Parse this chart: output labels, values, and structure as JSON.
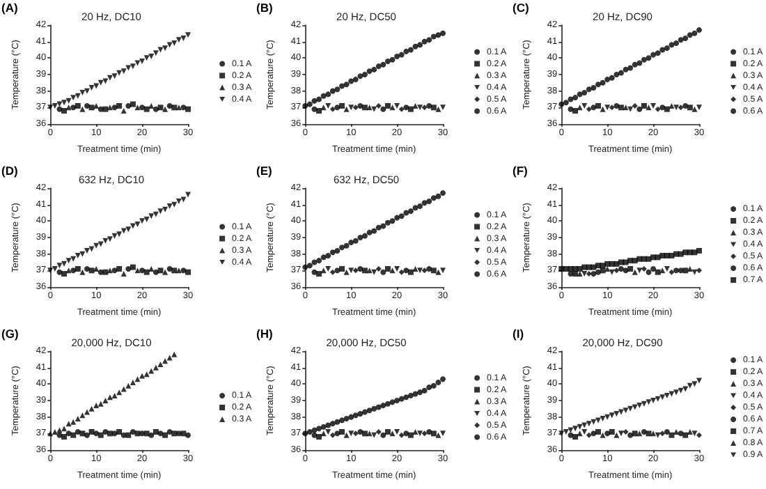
{
  "chart_data": [
    {
      "type": "scatter",
      "title": "20 Hz, DC10",
      "annotations": [
        "(A)"
      ],
      "xlabel": "Treatment time (min)",
      "ylabel": "Temperature (°C)",
      "xlim": [
        0,
        30
      ],
      "xticks": [
        0,
        10,
        20,
        30
      ],
      "ylim": [
        36,
        42
      ],
      "yticks": [
        36,
        37,
        38,
        39,
        40,
        41,
        42
      ],
      "legend": "right",
      "x": [
        0,
        1,
        2,
        3,
        4,
        5,
        6,
        7,
        8,
        9,
        10,
        11,
        12,
        13,
        14,
        15,
        16,
        17,
        18,
        19,
        20,
        21,
        22,
        23,
        24,
        25,
        26,
        27,
        28,
        29,
        30
      ],
      "series": [
        {
          "name": "0.1 A",
          "color": "#000000",
          "marker": "circle",
          "x": [
            2,
            5,
            8,
            11,
            14,
            17,
            20,
            23,
            26,
            29
          ],
          "values": [
            36.9,
            37,
            37.1,
            36.9,
            37,
            37.1,
            37,
            36.9,
            37.1,
            37
          ]
        },
        {
          "name": "0.2 A",
          "color": "#000000",
          "marker": "square",
          "x": [
            3,
            6,
            9,
            12,
            15,
            18,
            21,
            24,
            27,
            30
          ],
          "values": [
            36.8,
            37.1,
            37,
            36.9,
            37.1,
            37.2,
            36.9,
            37,
            37,
            36.9
          ]
        },
        {
          "name": "0.3 A",
          "color": "#000000",
          "marker": "triangle",
          "x": [
            4,
            7,
            10,
            13,
            16,
            19,
            22,
            25,
            28
          ],
          "values": [
            37,
            36.9,
            37.1,
            37,
            36.8,
            37,
            37.1,
            36.9,
            37
          ]
        },
        {
          "name": "0.4 A",
          "color": "#000000",
          "marker": "triangle-down",
          "values": [
            37.0,
            37.1,
            37.2,
            37.3,
            37.4,
            37.6,
            37.7,
            37.9,
            38.0,
            38.2,
            38.3,
            38.5,
            38.6,
            38.8,
            38.9,
            39.1,
            39.2,
            39.4,
            39.5,
            39.7,
            39.8,
            40.0,
            40.1,
            40.3,
            40.5,
            40.6,
            40.8,
            40.9,
            41.1,
            41.2,
            41.4
          ]
        }
      ]
    },
    {
      "type": "scatter",
      "title": "20 Hz, DC50",
      "annotations": [
        "(B)"
      ],
      "xlabel": "Treatment time (min)",
      "ylabel": "Temperature (°C)",
      "xlim": [
        0,
        30
      ],
      "xticks": [
        0,
        10,
        20,
        30
      ],
      "ylim": [
        36,
        42
      ],
      "yticks": [
        36,
        37,
        38,
        39,
        40,
        41,
        42
      ],
      "legend": "right",
      "x": [
        0,
        1,
        2,
        3,
        4,
        5,
        6,
        7,
        8,
        9,
        10,
        11,
        12,
        13,
        14,
        15,
        16,
        17,
        18,
        19,
        20,
        21,
        22,
        23,
        24,
        25,
        26,
        27,
        28,
        29,
        30
      ],
      "series": [
        {
          "name": "0.1 A",
          "color": "#000000",
          "marker": "circle",
          "x": [
            2,
            7,
            12,
            17,
            22,
            27
          ],
          "values": [
            36.9,
            37,
            37.1,
            36.9,
            37,
            37.1
          ]
        },
        {
          "name": "0.2 A",
          "color": "#000000",
          "marker": "square",
          "x": [
            3,
            8,
            13,
            18,
            23,
            28
          ],
          "values": [
            36.8,
            37.1,
            37,
            37.1,
            36.9,
            37
          ]
        },
        {
          "name": "0.3 A",
          "color": "#000000",
          "marker": "triangle",
          "x": [
            4,
            9,
            14,
            19,
            24,
            29
          ],
          "values": [
            37,
            36.9,
            37,
            37,
            37.1,
            36.9
          ]
        },
        {
          "name": "0.4 A",
          "color": "#000000",
          "marker": "triangle-down",
          "x": [
            5,
            10,
            15,
            20,
            25,
            30
          ],
          "values": [
            37.1,
            37,
            36.9,
            37.1,
            37,
            37
          ]
        },
        {
          "name": "0.5 A",
          "color": "#000000",
          "marker": "diamond",
          "x": [
            6,
            11,
            16,
            21,
            26
          ],
          "values": [
            36.9,
            37,
            37.1,
            36.9,
            37
          ]
        },
        {
          "name": "0.6 A",
          "color": "#000000",
          "marker": "circle",
          "values": [
            37.1,
            37.2,
            37.4,
            37.5,
            37.7,
            37.8,
            38.0,
            38.1,
            38.3,
            38.4,
            38.6,
            38.7,
            38.9,
            39.0,
            39.2,
            39.3,
            39.5,
            39.6,
            39.8,
            39.9,
            40.1,
            40.2,
            40.4,
            40.5,
            40.7,
            40.8,
            41.0,
            41.1,
            41.3,
            41.4,
            41.5
          ]
        }
      ]
    },
    {
      "type": "scatter",
      "title": "20 Hz, DC90",
      "annotations": [
        "(C)"
      ],
      "xlabel": "Treatment time (min)",
      "ylabel": "Temperature (°C)",
      "xlim": [
        0,
        30
      ],
      "xticks": [
        0,
        10,
        20,
        30
      ],
      "ylim": [
        36,
        42
      ],
      "yticks": [
        36,
        37,
        38,
        39,
        40,
        41,
        42
      ],
      "legend": "right",
      "x": [
        0,
        1,
        2,
        3,
        4,
        5,
        6,
        7,
        8,
        9,
        10,
        11,
        12,
        13,
        14,
        15,
        16,
        17,
        18,
        19,
        20,
        21,
        22,
        23,
        24,
        25,
        26,
        27,
        28,
        29,
        30
      ],
      "series": [
        {
          "name": "0.1 A",
          "color": "#000000",
          "marker": "circle",
          "x": [
            2,
            7,
            12,
            17,
            22,
            27
          ],
          "values": [
            36.9,
            37,
            37.1,
            36.9,
            37,
            37.1
          ]
        },
        {
          "name": "0.2 A",
          "color": "#000000",
          "marker": "square",
          "x": [
            3,
            8,
            13,
            18,
            23,
            28
          ],
          "values": [
            36.8,
            37.1,
            37,
            37.1,
            36.9,
            37
          ]
        },
        {
          "name": "0.3 A",
          "color": "#000000",
          "marker": "triangle",
          "x": [
            4,
            9,
            14,
            19,
            24,
            29
          ],
          "values": [
            37,
            36.9,
            37,
            37,
            37.1,
            36.9
          ]
        },
        {
          "name": "0.4 A",
          "color": "#000000",
          "marker": "triangle-down",
          "x": [
            5,
            10,
            15,
            20,
            25,
            30
          ],
          "values": [
            37.1,
            37,
            36.9,
            37.1,
            37,
            37
          ]
        },
        {
          "name": "0.5 A",
          "color": "#000000",
          "marker": "diamond",
          "x": [
            6,
            11,
            16,
            21,
            26
          ],
          "values": [
            36.9,
            37,
            37.1,
            36.9,
            37
          ]
        },
        {
          "name": "0.6 A",
          "color": "#000000",
          "marker": "circle",
          "values": [
            37.2,
            37.3,
            37.5,
            37.6,
            37.8,
            37.9,
            38.1,
            38.2,
            38.4,
            38.5,
            38.7,
            38.8,
            39.0,
            39.1,
            39.3,
            39.4,
            39.6,
            39.7,
            39.9,
            40.0,
            40.2,
            40.3,
            40.5,
            40.6,
            40.8,
            40.9,
            41.1,
            41.2,
            41.4,
            41.5,
            41.7
          ]
        }
      ]
    },
    {
      "type": "scatter",
      "title": "632 Hz, DC10",
      "annotations": [
        "(D)"
      ],
      "xlabel": "Treatment time (min)",
      "ylabel": "Temperature (°C)",
      "xlim": [
        0,
        30
      ],
      "xticks": [
        0,
        10,
        20,
        30
      ],
      "ylim": [
        36,
        42
      ],
      "yticks": [
        36,
        37,
        38,
        39,
        40,
        41,
        42
      ],
      "legend": "right",
      "x": [
        0,
        1,
        2,
        3,
        4,
        5,
        6,
        7,
        8,
        9,
        10,
        11,
        12,
        13,
        14,
        15,
        16,
        17,
        18,
        19,
        20,
        21,
        22,
        23,
        24,
        25,
        26,
        27,
        28,
        29,
        30
      ],
      "series": [
        {
          "name": "0.1 A",
          "color": "#000000",
          "marker": "circle",
          "x": [
            2,
            5,
            8,
            11,
            14,
            17,
            20,
            23,
            26,
            29
          ],
          "values": [
            36.9,
            37,
            37.1,
            36.9,
            37,
            37.1,
            37,
            36.9,
            37.1,
            37
          ]
        },
        {
          "name": "0.2 A",
          "color": "#000000",
          "marker": "square",
          "x": [
            3,
            6,
            9,
            12,
            15,
            18,
            21,
            24,
            27,
            30
          ],
          "values": [
            36.8,
            37.1,
            37,
            36.9,
            37.1,
            37.2,
            36.9,
            37,
            37,
            36.9
          ]
        },
        {
          "name": "0.3 A",
          "color": "#000000",
          "marker": "triangle",
          "x": [
            4,
            7,
            10,
            13,
            16,
            19,
            22,
            25,
            28
          ],
          "values": [
            37,
            36.9,
            37.1,
            37,
            36.8,
            37,
            37.1,
            36.9,
            37
          ]
        },
        {
          "name": "0.4 A",
          "color": "#000000",
          "marker": "triangle-down",
          "values": [
            37.0,
            37.1,
            37.3,
            37.4,
            37.6,
            37.7,
            37.9,
            38.0,
            38.2,
            38.3,
            38.5,
            38.6,
            38.8,
            38.9,
            39.1,
            39.2,
            39.4,
            39.5,
            39.7,
            39.8,
            40.0,
            40.1,
            40.3,
            40.4,
            40.6,
            40.7,
            40.9,
            41.0,
            41.2,
            41.3,
            41.6
          ]
        }
      ]
    },
    {
      "type": "scatter",
      "title": "632 Hz, DC50",
      "annotations": [
        "(E)"
      ],
      "xlabel": "Treatment time (min)",
      "ylabel": "Temperature (°C)",
      "xlim": [
        0,
        30
      ],
      "xticks": [
        0,
        10,
        20,
        30
      ],
      "ylim": [
        36,
        42
      ],
      "yticks": [
        36,
        37,
        38,
        39,
        40,
        41,
        42
      ],
      "legend": "right",
      "x": [
        0,
        1,
        2,
        3,
        4,
        5,
        6,
        7,
        8,
        9,
        10,
        11,
        12,
        13,
        14,
        15,
        16,
        17,
        18,
        19,
        20,
        21,
        22,
        23,
        24,
        25,
        26,
        27,
        28,
        29,
        30
      ],
      "series": [
        {
          "name": "0.1 A",
          "color": "#000000",
          "marker": "circle",
          "x": [
            2,
            7,
            12,
            17,
            22,
            27
          ],
          "values": [
            36.9,
            37,
            37.1,
            36.9,
            37,
            37.1
          ]
        },
        {
          "name": "0.2 A",
          "color": "#000000",
          "marker": "square",
          "x": [
            3,
            8,
            13,
            18,
            23,
            28
          ],
          "values": [
            36.8,
            37.1,
            37,
            37.1,
            36.9,
            37
          ]
        },
        {
          "name": "0.3 A",
          "color": "#000000",
          "marker": "triangle",
          "x": [
            4,
            9,
            14,
            19,
            24,
            29
          ],
          "values": [
            37,
            36.9,
            37,
            37,
            37.1,
            36.9
          ]
        },
        {
          "name": "0.4 A",
          "color": "#000000",
          "marker": "triangle-down",
          "x": [
            5,
            10,
            15,
            20,
            25,
            30
          ],
          "values": [
            37.1,
            37,
            36.9,
            37.1,
            37,
            37
          ]
        },
        {
          "name": "0.5 A",
          "color": "#000000",
          "marker": "diamond",
          "x": [
            6,
            11,
            16,
            21,
            26
          ],
          "values": [
            36.9,
            37,
            37.1,
            36.9,
            37
          ]
        },
        {
          "name": "0.6 A",
          "color": "#000000",
          "marker": "circle",
          "values": [
            37.2,
            37.3,
            37.5,
            37.6,
            37.8,
            37.9,
            38.1,
            38.2,
            38.4,
            38.5,
            38.7,
            38.8,
            39.0,
            39.1,
            39.3,
            39.4,
            39.6,
            39.7,
            39.9,
            40.0,
            40.2,
            40.3,
            40.5,
            40.6,
            40.8,
            40.9,
            41.1,
            41.2,
            41.4,
            41.5,
            41.7
          ]
        }
      ]
    },
    {
      "type": "scatter",
      "annotations": [
        "(F)"
      ],
      "xlabel": "Treatment time (min)",
      "ylabel": "Temperature (°C)",
      "xlim": [
        0,
        30
      ],
      "xticks": [
        0,
        10,
        20,
        30
      ],
      "ylim": [
        36,
        42
      ],
      "yticks": [
        36,
        37,
        38,
        39,
        40,
        41,
        42
      ],
      "legend": "right",
      "x": [
        0,
        1,
        2,
        3,
        4,
        5,
        6,
        7,
        8,
        9,
        10,
        11,
        12,
        13,
        14,
        15,
        16,
        17,
        18,
        19,
        20,
        21,
        22,
        23,
        24,
        25,
        26,
        27,
        28,
        29,
        30
      ],
      "series": [
        {
          "name": "0.1 A",
          "color": "#000000",
          "marker": "circle",
          "x": [
            2,
            8,
            14,
            20,
            26
          ],
          "values": [
            36.8,
            36.9,
            37,
            37.1,
            37
          ]
        },
        {
          "name": "0.2 A",
          "color": "#000000",
          "marker": "square",
          "x": [
            3,
            9,
            15,
            21,
            27
          ],
          "values": [
            36.8,
            37,
            37.1,
            36.9,
            37
          ]
        },
        {
          "name": "0.3 A",
          "color": "#000000",
          "marker": "triangle",
          "x": [
            4,
            10,
            16,
            22,
            28
          ],
          "values": [
            36.8,
            37.1,
            36.9,
            37,
            37.1
          ]
        },
        {
          "name": "0.4 A",
          "color": "#000000",
          "marker": "triangle-down",
          "x": [
            5,
            11,
            17,
            23,
            29
          ],
          "values": [
            36.8,
            36.9,
            37,
            37.1,
            36.9
          ]
        },
        {
          "name": "0.5 A",
          "color": "#000000",
          "marker": "diamond",
          "x": [
            6,
            12,
            18,
            24,
            30
          ],
          "values": [
            36.8,
            37,
            37.1,
            36.9,
            37
          ]
        },
        {
          "name": "0.6 A",
          "color": "#000000",
          "marker": "circle",
          "x": [
            7,
            13,
            19,
            25
          ],
          "values": [
            36.8,
            37.1,
            36.9,
            37
          ]
        },
        {
          "name": "0.7 A",
          "color": "#000000",
          "marker": "square",
          "values": [
            37.1,
            37.1,
            37.1,
            37.1,
            37.1,
            37.2,
            37.2,
            37.2,
            37.3,
            37.3,
            37.4,
            37.4,
            37.4,
            37.5,
            37.5,
            37.6,
            37.6,
            37.7,
            37.7,
            37.7,
            37.8,
            37.8,
            37.9,
            37.9,
            37.9,
            38.0,
            38.0,
            38.1,
            38.1,
            38.1,
            38.2
          ]
        }
      ]
    },
    {
      "type": "scatter",
      "title": "20,000 Hz, DC10",
      "annotations": [
        "(G)"
      ],
      "xlabel": "Treatment time (min)",
      "ylabel": "Temperature (°C)",
      "xlim": [
        0,
        30
      ],
      "xticks": [
        0,
        10,
        20,
        30
      ],
      "ylim": [
        36,
        42
      ],
      "yticks": [
        36,
        37,
        38,
        39,
        40,
        41,
        42
      ],
      "legend": "right",
      "series": [
        {
          "name": "0.1 A",
          "color": "#000000",
          "marker": "circle",
          "x": [
            2,
            4,
            6,
            8,
            10,
            12,
            14,
            16,
            18,
            20,
            22,
            24,
            26,
            28,
            30
          ],
          "values": [
            36.9,
            37,
            37.1,
            36.9,
            37,
            37.1,
            37,
            36.9,
            37.1,
            37,
            36.9,
            37,
            37.1,
            37,
            36.9
          ]
        },
        {
          "name": "0.2 A",
          "color": "#000000",
          "marker": "square",
          "x": [
            3,
            5,
            7,
            9,
            11,
            13,
            15,
            17,
            19,
            21,
            23,
            25,
            27,
            29
          ],
          "values": [
            36.8,
            36.9,
            37,
            37.1,
            36.9,
            37,
            37.1,
            36.9,
            37,
            37,
            37.1,
            36.9,
            37,
            37
          ]
        },
        {
          "name": "0.3 A",
          "color": "#000000",
          "marker": "triangle",
          "x": [
            0,
            1,
            2,
            3,
            4,
            5,
            6,
            7,
            8,
            9,
            10,
            11,
            12,
            13,
            14,
            15,
            16,
            17,
            18,
            19,
            20,
            21,
            22,
            23,
            24,
            25,
            26,
            27
          ],
          "values": [
            37.0,
            37.1,
            37.2,
            37.3,
            37.6,
            37.7,
            37.9,
            38.1,
            38.3,
            38.5,
            38.7,
            38.8,
            39.0,
            39.2,
            39.3,
            39.5,
            39.7,
            39.9,
            40.1,
            40.3,
            40.5,
            40.6,
            40.8,
            41.0,
            41.2,
            41.4,
            41.6,
            41.8
          ]
        }
      ]
    },
    {
      "type": "scatter",
      "title": "20,000 Hz, DC50",
      "annotations": [
        "(H)"
      ],
      "xlabel": "Treatment time (min)",
      "ylabel": "Temperature (°C)",
      "xlim": [
        0,
        30
      ],
      "xticks": [
        0,
        10,
        20,
        30
      ],
      "ylim": [
        36,
        42
      ],
      "yticks": [
        36,
        37,
        38,
        39,
        40,
        41,
        42
      ],
      "legend": "right",
      "x": [
        0,
        1,
        2,
        3,
        4,
        5,
        6,
        7,
        8,
        9,
        10,
        11,
        12,
        13,
        14,
        15,
        16,
        17,
        18,
        19,
        20,
        21,
        22,
        23,
        24,
        25,
        26,
        27,
        28,
        29,
        30
      ],
      "series": [
        {
          "name": "0.1 A",
          "color": "#000000",
          "marker": "circle",
          "x": [
            2,
            7,
            12,
            17,
            22,
            27
          ],
          "values": [
            36.9,
            37,
            37.1,
            36.9,
            37,
            37.1
          ]
        },
        {
          "name": "0.2 A",
          "color": "#000000",
          "marker": "square",
          "x": [
            3,
            8,
            13,
            18,
            23,
            28
          ],
          "values": [
            36.8,
            37.1,
            37,
            37.1,
            36.9,
            37
          ]
        },
        {
          "name": "0.3 A",
          "color": "#000000",
          "marker": "triangle",
          "x": [
            4,
            9,
            14,
            19,
            24,
            29
          ],
          "values": [
            37,
            36.9,
            37,
            37,
            37.1,
            36.9
          ]
        },
        {
          "name": "0.4 A",
          "color": "#000000",
          "marker": "triangle-down",
          "x": [
            5,
            10,
            15,
            20,
            25,
            30
          ],
          "values": [
            37.1,
            37,
            36.9,
            37.1,
            37,
            37
          ]
        },
        {
          "name": "0.5 A",
          "color": "#000000",
          "marker": "diamond",
          "x": [
            6,
            11,
            16,
            21,
            26
          ],
          "values": [
            36.9,
            37,
            37.1,
            36.9,
            37
          ]
        },
        {
          "name": "0.6 A",
          "color": "#000000",
          "marker": "circle",
          "values": [
            37.0,
            37.1,
            37.2,
            37.3,
            37.4,
            37.5,
            37.6,
            37.7,
            37.8,
            37.9,
            38.0,
            38.1,
            38.2,
            38.3,
            38.4,
            38.5,
            38.6,
            38.7,
            38.8,
            38.9,
            39.0,
            39.1,
            39.2,
            39.3,
            39.4,
            39.5,
            39.6,
            39.8,
            39.9,
            40.1,
            40.3
          ]
        }
      ]
    },
    {
      "type": "scatter",
      "title": "20,000 Hz, DC90",
      "annotations": [
        "(I)"
      ],
      "xlabel": "Treatment time (min)",
      "ylabel": "Temperature (°C)",
      "xlim": [
        0,
        30
      ],
      "xticks": [
        0,
        10,
        20,
        30
      ],
      "ylim": [
        36,
        42
      ],
      "yticks": [
        36,
        37,
        38,
        39,
        40,
        41,
        42
      ],
      "legend": "right",
      "x": [
        0,
        1,
        2,
        3,
        4,
        5,
        6,
        7,
        8,
        9,
        10,
        11,
        12,
        13,
        14,
        15,
        16,
        17,
        18,
        19,
        20,
        21,
        22,
        23,
        24,
        25,
        26,
        27,
        28,
        29,
        30
      ],
      "series": [
        {
          "name": "0.1 A",
          "color": "#000000",
          "marker": "circle",
          "x": [
            2,
            10,
            18,
            26
          ],
          "values": [
            36.9,
            37,
            37.1,
            37
          ]
        },
        {
          "name": "0.2 A",
          "color": "#000000",
          "marker": "square",
          "x": [
            3,
            11,
            19,
            27
          ],
          "values": [
            36.8,
            37.1,
            37,
            36.9
          ]
        },
        {
          "name": "0.3 A",
          "color": "#000000",
          "marker": "triangle",
          "x": [
            4,
            12,
            20,
            28
          ],
          "values": [
            37,
            36.9,
            37,
            37.1
          ]
        },
        {
          "name": "0.4 A",
          "color": "#000000",
          "marker": "triangle-down",
          "x": [
            5,
            13,
            21,
            29
          ],
          "values": [
            37.1,
            37,
            36.9,
            37
          ]
        },
        {
          "name": "0.5 A",
          "color": "#000000",
          "marker": "diamond",
          "x": [
            6,
            14,
            22,
            30
          ],
          "values": [
            36.9,
            37.1,
            37,
            36.9
          ]
        },
        {
          "name": "0.6 A",
          "color": "#000000",
          "marker": "circle",
          "x": [
            7,
            15,
            23
          ],
          "values": [
            37,
            36.9,
            37.1
          ]
        },
        {
          "name": "0.7 A",
          "color": "#000000",
          "marker": "square",
          "x": [
            8,
            16,
            24
          ],
          "values": [
            37.1,
            37,
            36.9
          ]
        },
        {
          "name": "0.8 A",
          "color": "#000000",
          "marker": "triangle",
          "x": [
            9,
            17,
            25
          ],
          "values": [
            36.9,
            37,
            37.1
          ]
        },
        {
          "name": "0.9 A",
          "color": "#000000",
          "marker": "triangle-down",
          "values": [
            37.0,
            37.1,
            37.2,
            37.3,
            37.4,
            37.5,
            37.6,
            37.7,
            37.8,
            37.9,
            38.0,
            38.1,
            38.2,
            38.3,
            38.4,
            38.5,
            38.6,
            38.7,
            38.8,
            38.9,
            39.0,
            39.1,
            39.2,
            39.3,
            39.4,
            39.5,
            39.6,
            39.7,
            39.9,
            40.0,
            40.2
          ]
        }
      ]
    }
  ]
}
